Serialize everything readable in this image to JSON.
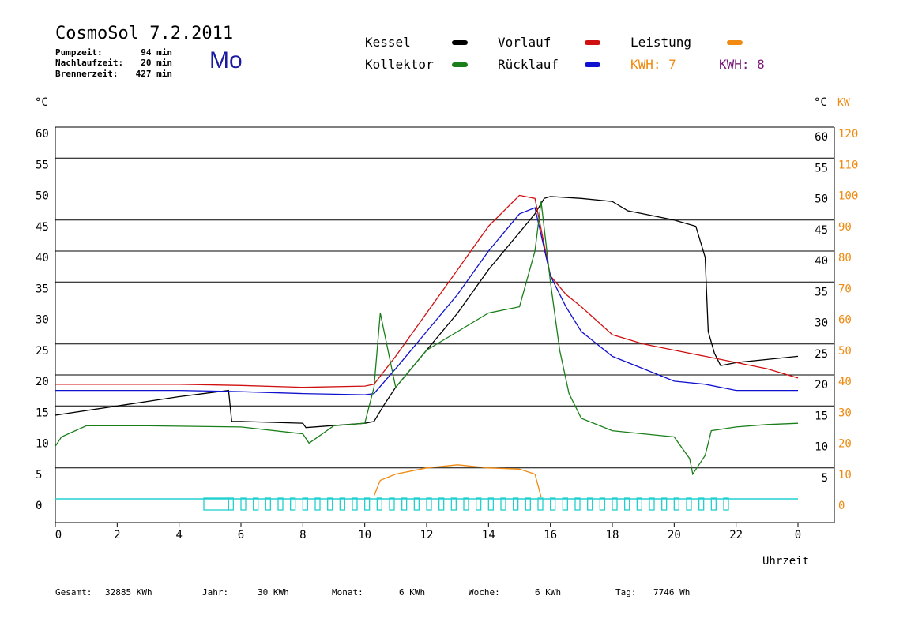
{
  "header": {
    "title": "CosmoSol 7.2.2011",
    "day": "Mo",
    "pump_label": "Pumpzeit:",
    "pump_value": "94 min",
    "after_label": "Nachlaufzeit:",
    "after_value": "20 min",
    "burner_label": "Brennerzeit:",
    "burner_value": "427 min"
  },
  "legend": {
    "kessel": "Kessel",
    "kollektor": "Kollektor",
    "vorlauf": "Vorlauf",
    "ruecklauf": "Rücklauf",
    "leistung": "Leistung",
    "kwh1": "KWH: 7",
    "kwh2": "KWH: 8"
  },
  "colors": {
    "kessel": "#000000",
    "kollektor": "#1a7f1a",
    "vorlauf": "#d01010",
    "ruecklauf": "#1010d0",
    "leistung": "#f08a10",
    "kwh2": "#7a1a7a",
    "pump": "#20d0d0"
  },
  "footer": {
    "gesamt_label": "Gesamt:",
    "gesamt_value": "32885 KWh",
    "jahr_label": "Jahr:",
    "jahr_value": "30 KWh",
    "monat_label": "Monat:",
    "monat_value": "6 KWh",
    "woche_label": "Woche:",
    "woche_value": "6 KWh",
    "tag_label": "Tag:",
    "tag_value": "7746 Wh"
  },
  "chart_data": {
    "type": "line",
    "xlabel": "Uhrzeit",
    "ylabel_left": "°C",
    "ylabel_right_temp": "°C",
    "ylabel_right_power": "KW",
    "x_ticks": [
      "0",
      "2",
      "4",
      "6",
      "8",
      "10",
      "12",
      "14",
      "16",
      "18",
      "20",
      "22",
      "0"
    ],
    "y_left_ticks": [
      "60",
      "55",
      "50",
      "45",
      "40",
      "35",
      "30",
      "25",
      "20",
      "15",
      "10",
      "5",
      "0"
    ],
    "y_right_temp_ticks": [
      "60",
      "55",
      "50",
      "45",
      "40",
      "35",
      "30",
      "25",
      "20",
      "15",
      "10",
      "5"
    ],
    "y_right_power_ticks": [
      "120",
      "110",
      "100",
      "90",
      "80",
      "70",
      "60",
      "50",
      "40",
      "30",
      "20",
      "10",
      "0"
    ],
    "xlim": [
      0,
      24
    ],
    "ylim": [
      0,
      60
    ],
    "y2lim": [
      0,
      120
    ],
    "grid": true,
    "series": [
      {
        "name": "Kessel",
        "x": [
          0,
          2,
          4,
          5.6,
          5.7,
          6,
          8,
          8.1,
          10,
          10.3,
          10.6,
          11,
          12,
          13,
          14,
          15,
          15.5,
          15.8,
          16,
          17,
          18,
          18.5,
          19,
          20,
          20.7,
          21,
          21.1,
          21.3,
          21.5,
          22,
          23,
          24
        ],
        "y": [
          13.5,
          15,
          16.5,
          17.5,
          12.5,
          12.5,
          12.2,
          11.5,
          12.2,
          12.5,
          15,
          18,
          24,
          30,
          37,
          43,
          46,
          48.5,
          48.8,
          48.5,
          48,
          46.5,
          46,
          45,
          44,
          39,
          27,
          23.5,
          21.5,
          22,
          22.5,
          23
        ]
      },
      {
        "name": "Vorlauf",
        "x": [
          0,
          4,
          6,
          8,
          10,
          10.3,
          11,
          12,
          13,
          14,
          15,
          15.5,
          16,
          16.5,
          17,
          18,
          19,
          20,
          21,
          22,
          23,
          24
        ],
        "y": [
          18.5,
          18.5,
          18.3,
          18,
          18.2,
          18.5,
          23,
          30,
          37,
          44,
          49,
          48.5,
          36,
          33,
          31,
          26.5,
          25,
          24,
          23,
          22,
          21,
          19.5
        ]
      },
      {
        "name": "Rücklauf",
        "x": [
          0,
          4,
          6,
          8,
          10,
          10.3,
          11,
          12,
          13,
          14,
          15,
          15.5,
          16,
          16.5,
          17,
          18,
          19,
          20,
          21,
          22,
          23,
          24
        ],
        "y": [
          17.5,
          17.5,
          17.3,
          17,
          16.8,
          17,
          21,
          27,
          33,
          40,
          46,
          47,
          36,
          31,
          27,
          23,
          21,
          19,
          18.5,
          17.5,
          17.5,
          17.5
        ]
      },
      {
        "name": "Kollektor",
        "x": [
          0,
          0.2,
          1,
          3,
          6,
          8,
          8.2,
          9,
          10,
          10.3,
          10.5,
          11,
          12,
          13,
          14,
          15,
          15.5,
          15.7,
          16,
          16.3,
          16.6,
          17,
          18,
          19,
          20,
          20.5,
          20.6,
          21,
          21.2,
          22,
          23,
          24
        ],
        "y": [
          8.5,
          10,
          11.8,
          11.8,
          11.6,
          10.5,
          9,
          11.8,
          12.2,
          18,
          30,
          18,
          24,
          27,
          30,
          31,
          40,
          48,
          35,
          24,
          17,
          13,
          11,
          10.5,
          10,
          6.5,
          4,
          7,
          11,
          11.6,
          12,
          12.2
        ]
      },
      {
        "name": "Leistung",
        "x": [
          10.3,
          10.5,
          11,
          12,
          13,
          14,
          15,
          15.5,
          15.7
        ],
        "y": [
          0.5,
          3,
          4,
          5,
          5.5,
          5,
          4.8,
          4,
          0.3
        ]
      }
    ],
    "pump_marker_x": [
      4.8,
      5.6,
      6.0,
      6.4,
      6.8,
      7.2,
      7.6,
      8.0,
      8.4,
      8.8,
      9.2,
      9.6,
      10.0,
      10.4,
      10.8,
      11.2,
      11.6,
      12.0,
      12.4,
      12.8,
      13.2,
      13.6,
      14.0,
      14.4,
      14.8,
      15.2,
      15.6,
      16.0,
      16.4,
      16.8,
      17.2,
      17.6,
      18.0,
      18.4,
      18.8,
      19.2,
      19.6,
      20.0,
      20.4,
      20.8,
      21.2,
      21.6
    ]
  }
}
